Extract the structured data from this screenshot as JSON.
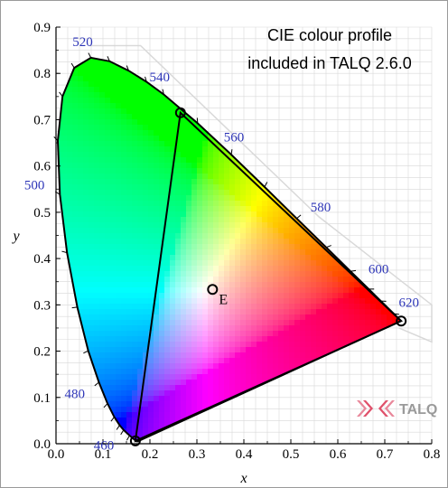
{
  "chart_data": {
    "type": "scatter",
    "title_lines": [
      "CIE colour profile",
      "included in TALQ 2.6.0"
    ],
    "xlabel": "x",
    "ylabel": "y",
    "xlim": [
      0,
      0.8
    ],
    "ylim": [
      0,
      0.9
    ],
    "x_ticks": [
      "0.0",
      "0.1",
      "0.2",
      "0.3",
      "0.4",
      "0.5",
      "0.6",
      "0.7",
      "0.8"
    ],
    "y_ticks": [
      "0.0",
      "0.1",
      "0.2",
      "0.3",
      "0.4",
      "0.5",
      "0.6",
      "0.7",
      "0.8",
      "0.9"
    ],
    "grid": true,
    "spectral_locus": [
      {
        "nm": 380,
        "x": 0.1741,
        "y": 0.005
      },
      {
        "nm": 420,
        "x": 0.1714,
        "y": 0.0051
      },
      {
        "nm": 440,
        "x": 0.1644,
        "y": 0.0109
      },
      {
        "nm": 450,
        "x": 0.1566,
        "y": 0.0177
      },
      {
        "nm": 460,
        "x": 0.144,
        "y": 0.0297
      },
      {
        "nm": 465,
        "x": 0.1355,
        "y": 0.0399
      },
      {
        "nm": 470,
        "x": 0.1241,
        "y": 0.0578
      },
      {
        "nm": 475,
        "x": 0.1096,
        "y": 0.0868
      },
      {
        "nm": 480,
        "x": 0.0913,
        "y": 0.1327
      },
      {
        "nm": 485,
        "x": 0.0687,
        "y": 0.2007
      },
      {
        "nm": 490,
        "x": 0.0454,
        "y": 0.295
      },
      {
        "nm": 495,
        "x": 0.0235,
        "y": 0.4127
      },
      {
        "nm": 500,
        "x": 0.0082,
        "y": 0.5384
      },
      {
        "nm": 505,
        "x": 0.0039,
        "y": 0.6548
      },
      {
        "nm": 510,
        "x": 0.0139,
        "y": 0.7502
      },
      {
        "nm": 515,
        "x": 0.0389,
        "y": 0.812
      },
      {
        "nm": 520,
        "x": 0.0743,
        "y": 0.8338
      },
      {
        "nm": 525,
        "x": 0.1142,
        "y": 0.8262
      },
      {
        "nm": 530,
        "x": 0.1547,
        "y": 0.8059
      },
      {
        "nm": 535,
        "x": 0.1929,
        "y": 0.7816
      },
      {
        "nm": 540,
        "x": 0.2296,
        "y": 0.7543
      },
      {
        "nm": 550,
        "x": 0.3016,
        "y": 0.6923
      },
      {
        "nm": 560,
        "x": 0.3731,
        "y": 0.6245
      },
      {
        "nm": 570,
        "x": 0.4441,
        "y": 0.5547
      },
      {
        "nm": 580,
        "x": 0.5125,
        "y": 0.4866
      },
      {
        "nm": 590,
        "x": 0.5752,
        "y": 0.4242
      },
      {
        "nm": 600,
        "x": 0.627,
        "y": 0.3725
      },
      {
        "nm": 610,
        "x": 0.6658,
        "y": 0.334
      },
      {
        "nm": 620,
        "x": 0.6915,
        "y": 0.3083
      },
      {
        "nm": 640,
        "x": 0.719,
        "y": 0.2809
      },
      {
        "nm": 700,
        "x": 0.7347,
        "y": 0.2653
      }
    ],
    "wavelength_labels": [
      {
        "text": "460",
        "nm": 460
      },
      {
        "text": "480",
        "nm": 480
      },
      {
        "text": "500",
        "nm": 500
      },
      {
        "text": "520",
        "nm": 520
      },
      {
        "text": "540",
        "nm": 540
      },
      {
        "text": "560",
        "nm": 560
      },
      {
        "text": "580",
        "nm": 580
      },
      {
        "text": "600",
        "nm": 600
      },
      {
        "text": "620",
        "nm": 620
      }
    ],
    "triangle": [
      {
        "x": 0.735,
        "y": 0.265
      },
      {
        "x": 0.265,
        "y": 0.715
      },
      {
        "x": 0.169,
        "y": 0.006
      }
    ],
    "white_point": {
      "label": "E",
      "x": 0.3333,
      "y": 0.3333
    },
    "colors": {
      "axis": "#000000",
      "grid": "#d8d8d8",
      "wavelength_label": "#2e36b8",
      "outer_gamut": "#d9d9d9"
    }
  },
  "logo": {
    "text": "TALQ",
    "icon": "talq-logo-icon",
    "color": "#e0506a",
    "text_color": "#9a9a9a"
  }
}
